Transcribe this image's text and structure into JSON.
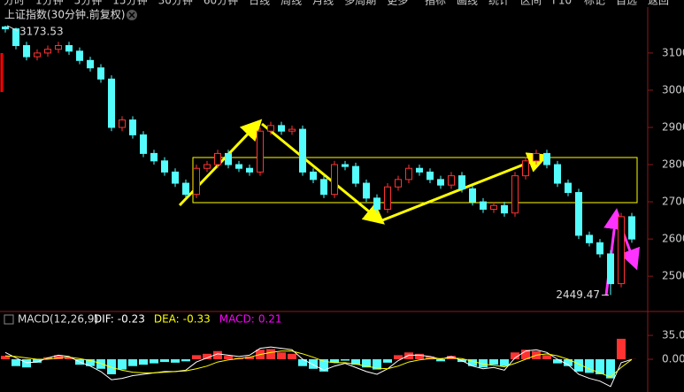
{
  "toolbar": {
    "left": [
      "分时",
      "1分钟",
      "5分钟",
      "15分钟",
      "30分钟",
      "60分钟",
      "日线",
      "周线",
      "月线",
      "多周期",
      "更多"
    ],
    "right": [
      "指标",
      "画线",
      "统计",
      "区间",
      "F10",
      "标记",
      "自选",
      "返回"
    ]
  },
  "chart_data": [
    {
      "type": "candlestick",
      "title": "上证指数(30分钟.前复权)",
      "up_color": "#ff3232",
      "down_color": "#54fcfc",
      "ylim": [
        2410,
        3183
      ],
      "yticks": [
        2500,
        2600,
        2700,
        2800,
        2900,
        3000,
        3100
      ],
      "grid": false,
      "max_label": 3173.53,
      "min_label": 2449.47,
      "open": [
        3170,
        3165,
        3120,
        3090,
        3100,
        3110,
        3120,
        3105,
        3080,
        3060,
        3030,
        2900,
        2920,
        2880,
        2830,
        2810,
        2780,
        2750,
        2720,
        2790,
        2800,
        2830,
        2800,
        2790,
        2780,
        2890,
        2905,
        2890,
        2895,
        2780,
        2760,
        2720,
        2800,
        2795,
        2750,
        2710,
        2680,
        2740,
        2760,
        2790,
        2780,
        2760,
        2745,
        2770,
        2735,
        2700,
        2680,
        2690,
        2670,
        2770,
        2810,
        2830,
        2800,
        2750,
        2725,
        2610,
        2590,
        2560,
        2480,
        2660
      ],
      "high": [
        3173.53,
        3168,
        3130,
        3110,
        3120,
        3130,
        3130,
        3115,
        3090,
        3070,
        3040,
        2930,
        2930,
        2890,
        2840,
        2820,
        2790,
        2760,
        2800,
        2810,
        2840,
        2840,
        2810,
        2800,
        2900,
        2915,
        2915,
        2905,
        2905,
        2790,
        2770,
        2810,
        2810,
        2805,
        2760,
        2720,
        2750,
        2770,
        2800,
        2800,
        2790,
        2770,
        2780,
        2780,
        2745,
        2710,
        2700,
        2700,
        2780,
        2820,
        2840,
        2840,
        2810,
        2760,
        2735,
        2620,
        2600,
        2570,
        2670,
        2670
      ],
      "low": [
        3155,
        3110,
        3080,
        3080,
        3090,
        3100,
        3095,
        3070,
        3050,
        3020,
        2890,
        2890,
        2870,
        2820,
        2800,
        2770,
        2740,
        2710,
        2710,
        2780,
        2790,
        2790,
        2780,
        2770,
        2770,
        2880,
        2880,
        2880,
        2770,
        2750,
        2710,
        2710,
        2785,
        2740,
        2700,
        2670,
        2670,
        2730,
        2750,
        2770,
        2750,
        2735,
        2735,
        2725,
        2690,
        2670,
        2670,
        2660,
        2660,
        2760,
        2800,
        2790,
        2740,
        2715,
        2600,
        2580,
        2550,
        2449.47,
        2470,
        2590
      ],
      "close": [
        3165,
        3120,
        3090,
        3100,
        3110,
        3120,
        3105,
        3080,
        3060,
        3030,
        2900,
        2920,
        2880,
        2830,
        2810,
        2780,
        2750,
        2720,
        2790,
        2800,
        2830,
        2800,
        2790,
        2780,
        2890,
        2905,
        2890,
        2895,
        2780,
        2760,
        2720,
        2800,
        2795,
        2750,
        2710,
        2680,
        2740,
        2760,
        2790,
        2780,
        2760,
        2745,
        2770,
        2735,
        2700,
        2680,
        2690,
        2670,
        2770,
        2810,
        2830,
        2800,
        2750,
        2725,
        2610,
        2590,
        2560,
        2480,
        2660,
        2600
      ]
    },
    {
      "type": "macd",
      "title": "MACD(12,26,9)",
      "ylim": [
        -48,
        46.7
      ],
      "yticks": [
        {
          "value": 35,
          "label": "35.00"
        },
        {
          "value": 0,
          "label": "0.00"
        }
      ],
      "series": [
        {
          "name": "DIF:",
          "color": "#ffffff",
          "current": -0.23,
          "values": [
            10,
            2,
            -5,
            -4,
            2,
            6,
            4,
            -4,
            -10,
            -18,
            -30,
            -28,
            -24,
            -22,
            -20,
            -18,
            -18,
            -16,
            -4,
            2,
            8,
            6,
            4,
            6,
            16,
            18,
            16,
            14,
            0,
            -8,
            -16,
            -10,
            -6,
            -12,
            -18,
            -22,
            -14,
            -2,
            6,
            6,
            4,
            0,
            4,
            -2,
            -10,
            -14,
            -12,
            -16,
            2,
            12,
            14,
            10,
            0,
            -8,
            -22,
            -28,
            -32,
            -40,
            -5,
            -0.23
          ]
        },
        {
          "name": "DEA:",
          "color": "#ffff00",
          "current": -0.33,
          "values": [
            5,
            4,
            2,
            0,
            0,
            2,
            3,
            1,
            -2,
            -6,
            -12,
            -16,
            -19,
            -20,
            -20,
            -19,
            -18,
            -17,
            -14,
            -10,
            -4,
            -1,
            1,
            3,
            7,
            10,
            12,
            12,
            8,
            3,
            -3,
            -5,
            -5,
            -7,
            -10,
            -13,
            -14,
            -10,
            -4,
            -1,
            1,
            1,
            2,
            1,
            -3,
            -7,
            -9,
            -11,
            -6,
            0,
            6,
            8,
            5,
            0,
            -7,
            -14,
            -20,
            -26,
            -12,
            -0.33
          ]
        },
        {
          "name": "MACD:",
          "color": "#ff00ff",
          "current": 0.21,
          "up_color": "#ff3232",
          "down_color": "#54fcfc",
          "values": [
            5,
            -10,
            -12,
            -5,
            3,
            6,
            2,
            -8,
            -10,
            -14,
            -22,
            -15,
            -10,
            -8,
            -6,
            -4,
            -5,
            -3,
            6,
            8,
            12,
            5,
            2,
            4,
            14,
            15,
            10,
            8,
            -10,
            -14,
            -18,
            -5,
            -2,
            -8,
            -12,
            -15,
            -5,
            6,
            10,
            8,
            4,
            -3,
            5,
            -4,
            -10,
            -12,
            -8,
            -10,
            10,
            14,
            12,
            6,
            -6,
            -10,
            -18,
            -20,
            -22,
            -28,
            30,
            0.21
          ]
        }
      ]
    }
  ]
}
